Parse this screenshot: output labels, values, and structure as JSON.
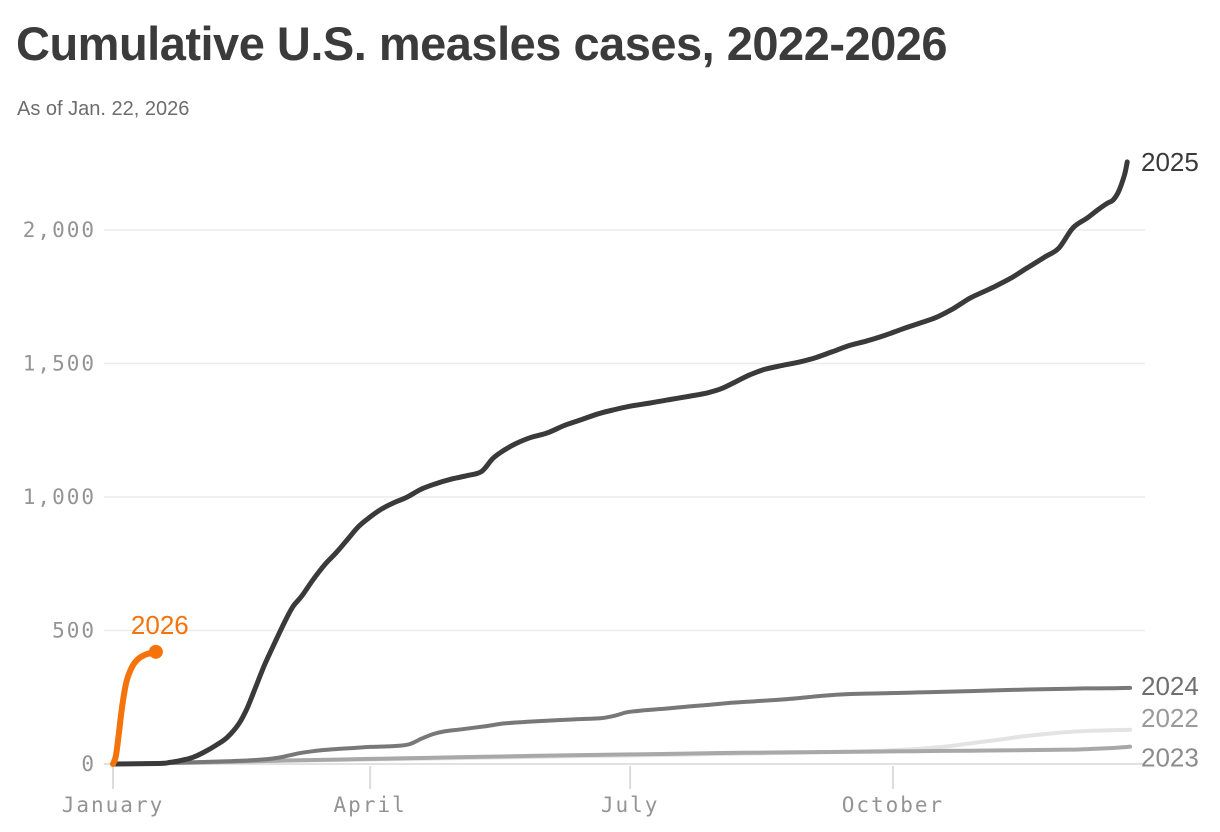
{
  "header": {
    "title": "Cumulative U.S. measles cases, 2022-2026",
    "subtitle": "As of Jan. 22, 2026"
  },
  "chart_data": {
    "type": "line",
    "title": "Cumulative U.S. measles cases, 2022-2026",
    "subtitle": "As of Jan. 22, 2026",
    "xlabel": "",
    "ylabel": "",
    "x_unit": "day_of_year",
    "xlim": [
      0,
      365
    ],
    "ylim": [
      0,
      2300
    ],
    "grid": "horizontal",
    "legend_position": "line-end-labels",
    "y_ticks": [
      {
        "value": 0,
        "label": "0"
      },
      {
        "value": 500,
        "label": "500"
      },
      {
        "value": 1000,
        "label": "1,000"
      },
      {
        "value": 1500,
        "label": "1,500"
      },
      {
        "value": 2000,
        "label": "2,000"
      }
    ],
    "x_ticks": [
      {
        "day": 0,
        "label": "January"
      },
      {
        "day": 90,
        "label": "April"
      },
      {
        "day": 181,
        "label": "July"
      },
      {
        "day": 273,
        "label": "October"
      }
    ],
    "series": [
      {
        "name": "2022",
        "color": "#e3e3e3",
        "label_color": "#9a9a9a",
        "line_width": 4,
        "label_position": "end",
        "label_dy": -12,
        "end_value": 128,
        "points": [
          [
            0,
            0
          ],
          [
            15,
            3
          ],
          [
            30,
            6
          ],
          [
            45,
            9
          ],
          [
            60,
            12
          ],
          [
            90,
            17
          ],
          [
            120,
            22
          ],
          [
            150,
            27
          ],
          [
            181,
            32
          ],
          [
            210,
            37
          ],
          [
            240,
            42
          ],
          [
            258,
            46
          ],
          [
            270,
            50
          ],
          [
            280,
            55
          ],
          [
            288,
            62
          ],
          [
            295,
            70
          ],
          [
            302,
            80
          ],
          [
            311,
            92
          ],
          [
            318,
            103
          ],
          [
            325,
            111
          ],
          [
            332,
            118
          ],
          [
            339,
            123
          ],
          [
            347,
            126
          ],
          [
            356,
            128
          ]
        ]
      },
      {
        "name": "2023",
        "color": "#a8a8a8",
        "label_color": "#8c8c8c",
        "line_width": 4,
        "label_position": "end",
        "label_dy": 11,
        "end_value": 65,
        "points": [
          [
            0,
            0
          ],
          [
            20,
            4
          ],
          [
            40,
            8
          ],
          [
            60,
            13
          ],
          [
            80,
            17
          ],
          [
            100,
            21
          ],
          [
            120,
            25
          ],
          [
            140,
            29
          ],
          [
            160,
            33
          ],
          [
            181,
            36
          ],
          [
            200,
            39
          ],
          [
            220,
            42
          ],
          [
            240,
            44
          ],
          [
            260,
            46
          ],
          [
            280,
            48
          ],
          [
            300,
            50
          ],
          [
            320,
            52
          ],
          [
            335,
            54
          ],
          [
            344,
            57
          ],
          [
            350,
            60
          ],
          [
            356,
            65
          ]
        ]
      },
      {
        "name": "2024",
        "color": "#787878",
        "label_color": "#6f6f6f",
        "line_width": 4,
        "label_position": "end",
        "label_dy": -2,
        "end_value": 285,
        "points": [
          [
            0,
            0
          ],
          [
            20,
            4
          ],
          [
            40,
            10
          ],
          [
            50,
            15
          ],
          [
            58,
            24
          ],
          [
            65,
            40
          ],
          [
            70,
            48
          ],
          [
            77,
            55
          ],
          [
            84,
            60
          ],
          [
            90,
            64
          ],
          [
            96,
            66
          ],
          [
            100,
            68
          ],
          [
            104,
            75
          ],
          [
            108,
            95
          ],
          [
            112,
            112
          ],
          [
            116,
            122
          ],
          [
            122,
            130
          ],
          [
            130,
            141
          ],
          [
            137,
            152
          ],
          [
            145,
            158
          ],
          [
            155,
            164
          ],
          [
            163,
            168
          ],
          [
            171,
            172
          ],
          [
            176,
            182
          ],
          [
            180,
            194
          ],
          [
            186,
            201
          ],
          [
            194,
            208
          ],
          [
            201,
            215
          ],
          [
            208,
            221
          ],
          [
            215,
            228
          ],
          [
            222,
            233
          ],
          [
            229,
            238
          ],
          [
            236,
            243
          ],
          [
            243,
            250
          ],
          [
            248,
            255
          ],
          [
            253,
            259
          ],
          [
            258,
            262
          ],
          [
            266,
            264
          ],
          [
            274,
            266
          ],
          [
            282,
            268
          ],
          [
            290,
            270
          ],
          [
            300,
            273
          ],
          [
            310,
            276
          ],
          [
            320,
            279
          ],
          [
            330,
            281
          ],
          [
            340,
            283
          ],
          [
            350,
            284
          ],
          [
            356,
            285
          ]
        ]
      },
      {
        "name": "2025",
        "color": "#3a3a3a",
        "label_color": "#3a3a3a",
        "line_width": 5,
        "label_position": "end",
        "label_dy": 0,
        "end_value": 2255,
        "points": [
          [
            0,
            0
          ],
          [
            16,
            2
          ],
          [
            20,
            6
          ],
          [
            24,
            14
          ],
          [
            28,
            25
          ],
          [
            32,
            45
          ],
          [
            36,
            70
          ],
          [
            40,
            100
          ],
          [
            44,
            150
          ],
          [
            47,
            210
          ],
          [
            50,
            290
          ],
          [
            53,
            370
          ],
          [
            56,
            440
          ],
          [
            60,
            530
          ],
          [
            63,
            590
          ],
          [
            66,
            628
          ],
          [
            70,
            690
          ],
          [
            74,
            745
          ],
          [
            78,
            790
          ],
          [
            82,
            840
          ],
          [
            86,
            890
          ],
          [
            90,
            925
          ],
          [
            94,
            955
          ],
          [
            98,
            977
          ],
          [
            103,
            1000
          ],
          [
            108,
            1030
          ],
          [
            113,
            1050
          ],
          [
            118,
            1066
          ],
          [
            124,
            1080
          ],
          [
            129,
            1096
          ],
          [
            133,
            1145
          ],
          [
            137,
            1176
          ],
          [
            141,
            1200
          ],
          [
            146,
            1222
          ],
          [
            152,
            1240
          ],
          [
            158,
            1268
          ],
          [
            164,
            1290
          ],
          [
            170,
            1312
          ],
          [
            175,
            1326
          ],
          [
            181,
            1340
          ],
          [
            188,
            1352
          ],
          [
            195,
            1365
          ],
          [
            202,
            1378
          ],
          [
            208,
            1390
          ],
          [
            213,
            1406
          ],
          [
            218,
            1432
          ],
          [
            223,
            1458
          ],
          [
            228,
            1478
          ],
          [
            234,
            1492
          ],
          [
            240,
            1505
          ],
          [
            246,
            1522
          ],
          [
            252,
            1545
          ],
          [
            258,
            1568
          ],
          [
            264,
            1585
          ],
          [
            270,
            1605
          ],
          [
            276,
            1628
          ],
          [
            282,
            1650
          ],
          [
            288,
            1672
          ],
          [
            294,
            1705
          ],
          [
            300,
            1745
          ],
          [
            305,
            1770
          ],
          [
            308,
            1785
          ],
          [
            314,
            1818
          ],
          [
            320,
            1858
          ],
          [
            326,
            1898
          ],
          [
            331,
            1932
          ],
          [
            336,
            2008
          ],
          [
            341,
            2045
          ],
          [
            345,
            2078
          ],
          [
            348,
            2100
          ],
          [
            350,
            2112
          ],
          [
            352,
            2145
          ],
          [
            354,
            2205
          ],
          [
            355,
            2255
          ]
        ]
      },
      {
        "name": "2026",
        "color": "#f5730b",
        "label_color": "#f5730b",
        "line_width": 6,
        "label_position": "above_end",
        "label_dy": -18,
        "end_dot": true,
        "end_value": 420,
        "points": [
          [
            0,
            0
          ],
          [
            1,
            30
          ],
          [
            2,
            110
          ],
          [
            3,
            200
          ],
          [
            4,
            270
          ],
          [
            5,
            320
          ],
          [
            7,
            370
          ],
          [
            9,
            395
          ],
          [
            11,
            408
          ],
          [
            13,
            415
          ],
          [
            15,
            420
          ]
        ]
      }
    ]
  }
}
